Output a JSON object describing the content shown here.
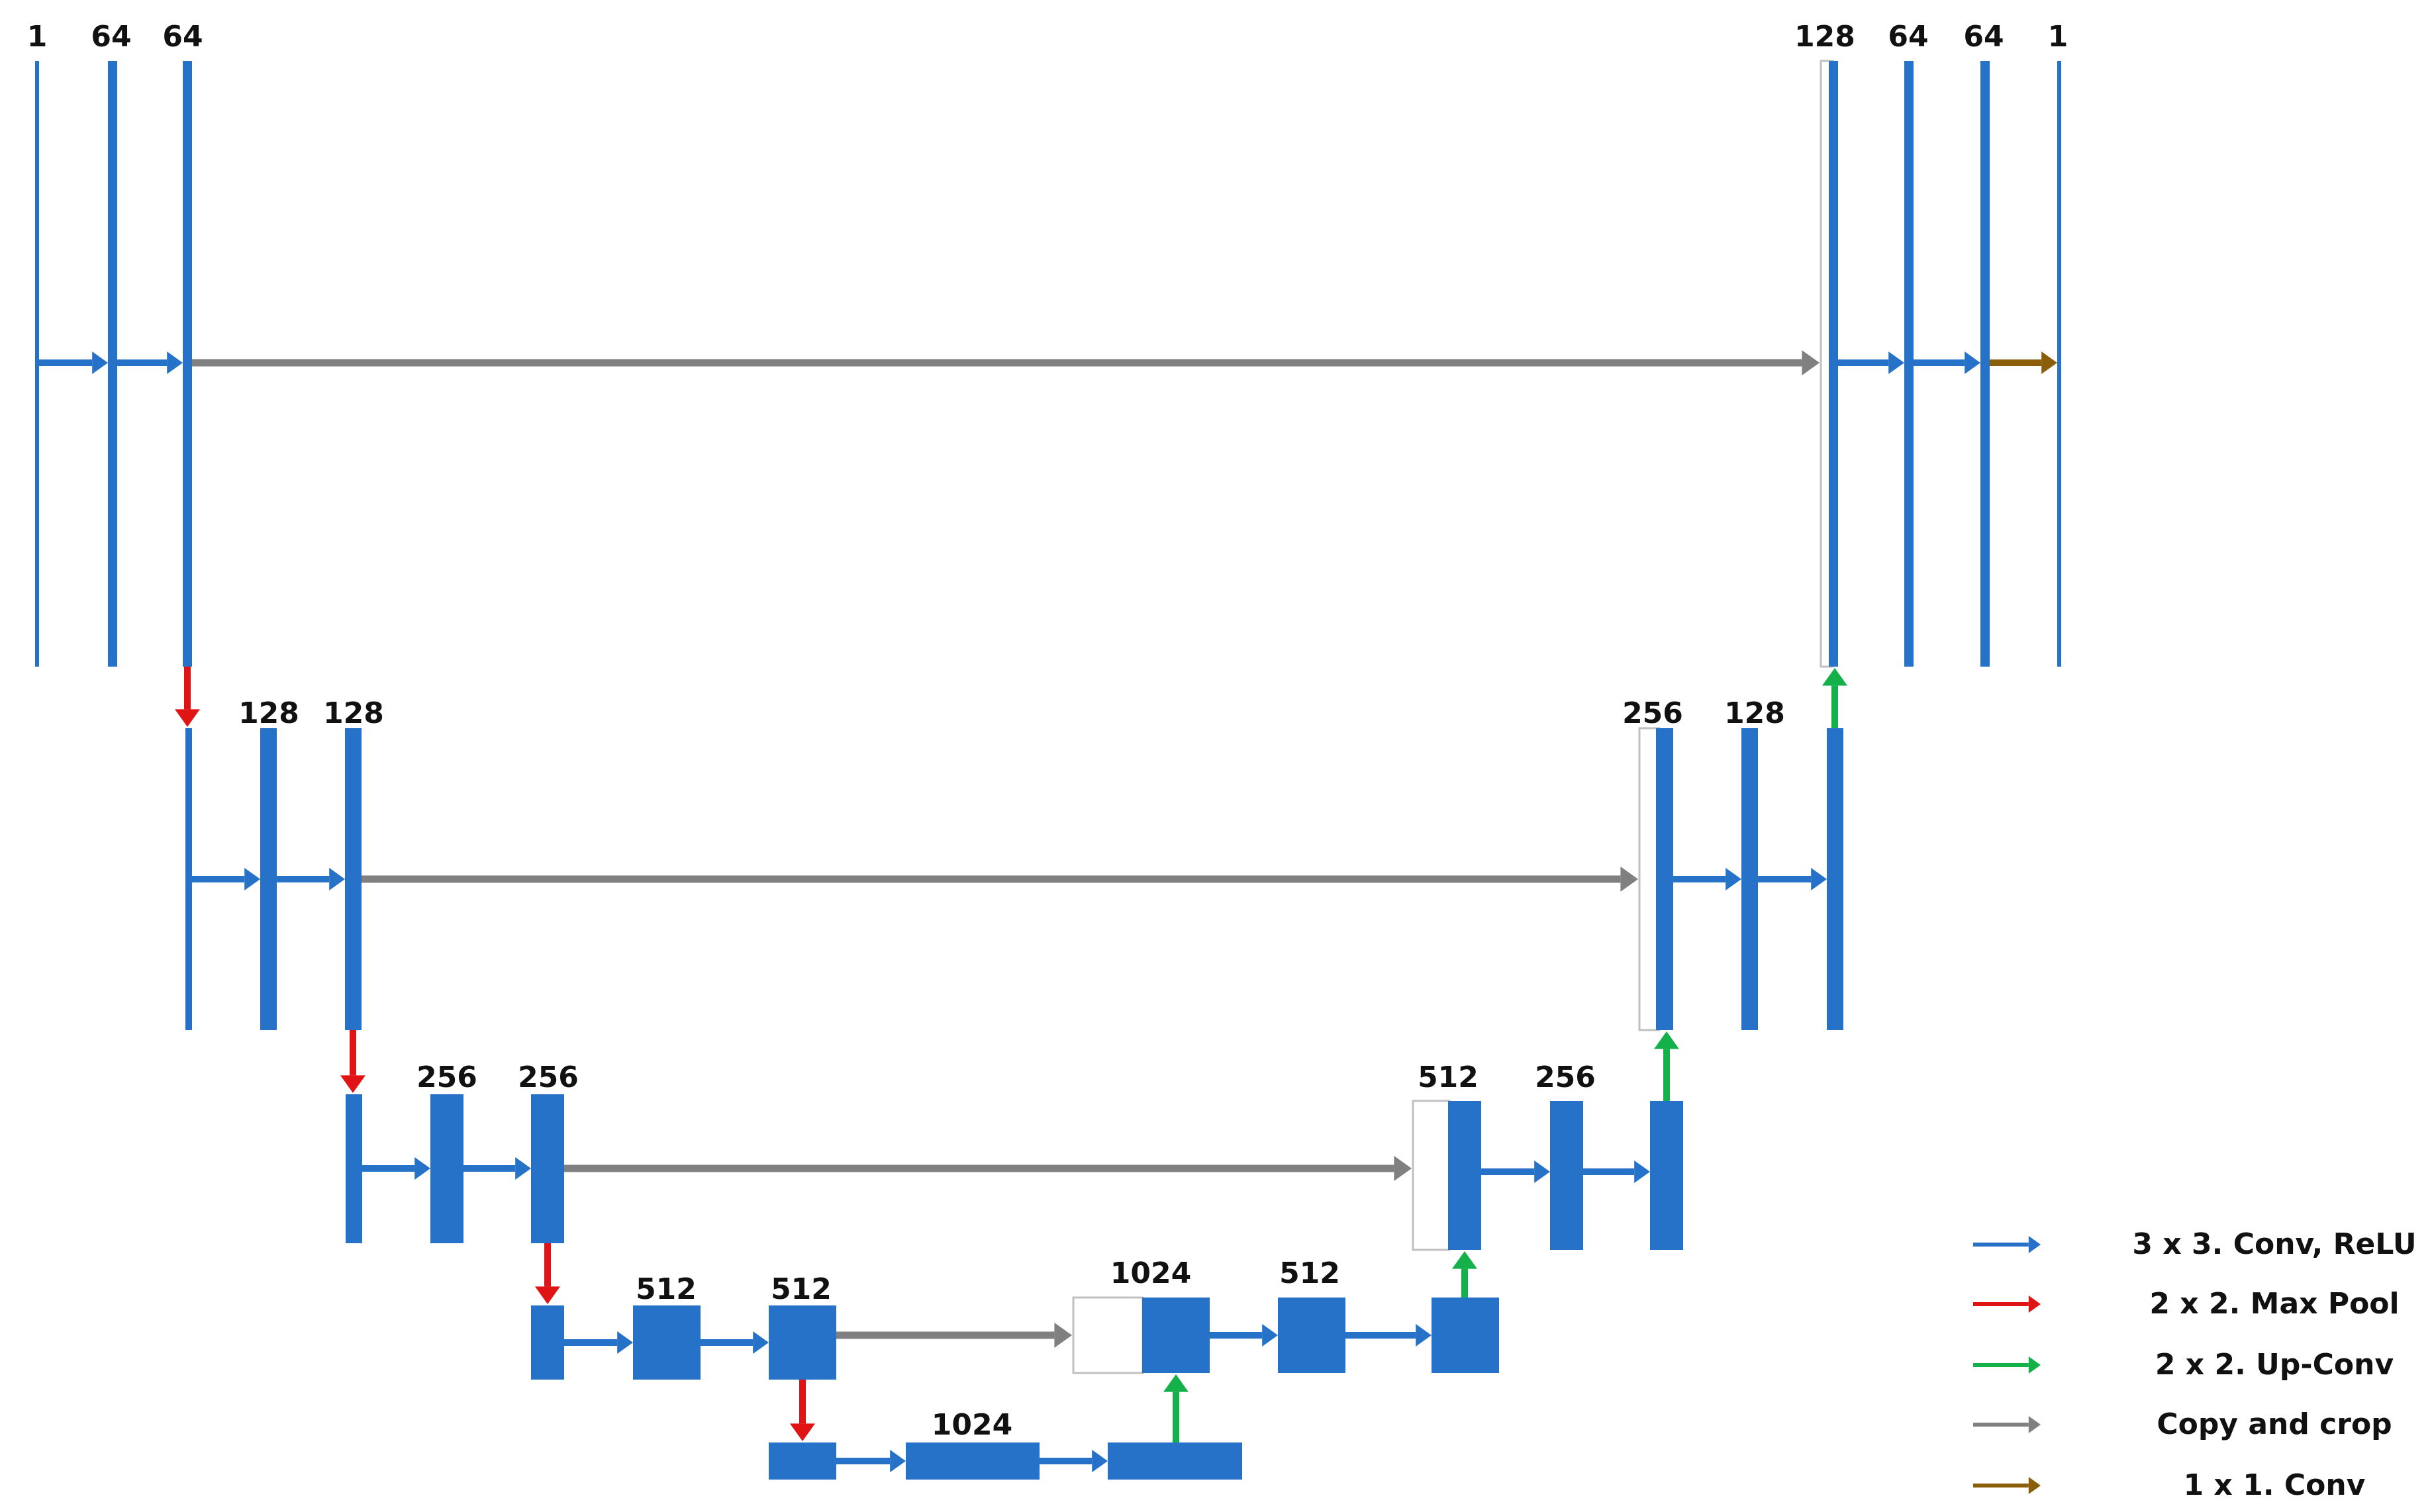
{
  "colors": {
    "conv": "#2672C8",
    "pool": "#E01414",
    "upconv": "#14B04A",
    "copy": "#808080",
    "final": "#8B5E0A",
    "concat_outline": "#C0C0C0"
  },
  "labels": {
    "l1": [
      "1",
      "64",
      "64"
    ],
    "l2": [
      "128",
      "128"
    ],
    "l3": [
      "256",
      "256"
    ],
    "l4": [
      "512",
      "512"
    ],
    "bottom": [
      "1024"
    ],
    "r4": [
      "1024",
      "512"
    ],
    "r3": [
      "512",
      "256"
    ],
    "r2": [
      "256",
      "128"
    ],
    "r1": [
      "128",
      "64",
      "64",
      "1"
    ]
  },
  "legend": [
    {
      "label": "3 x 3. Conv, ReLU",
      "color_key": "conv"
    },
    {
      "label": "2 x 2. Max Pool",
      "color_key": "pool"
    },
    {
      "label": "2 x 2. Up-Conv",
      "color_key": "upconv"
    },
    {
      "label": "Copy and crop",
      "color_key": "copy"
    },
    {
      "label": "1 x 1. Conv",
      "color_key": "final"
    }
  ]
}
